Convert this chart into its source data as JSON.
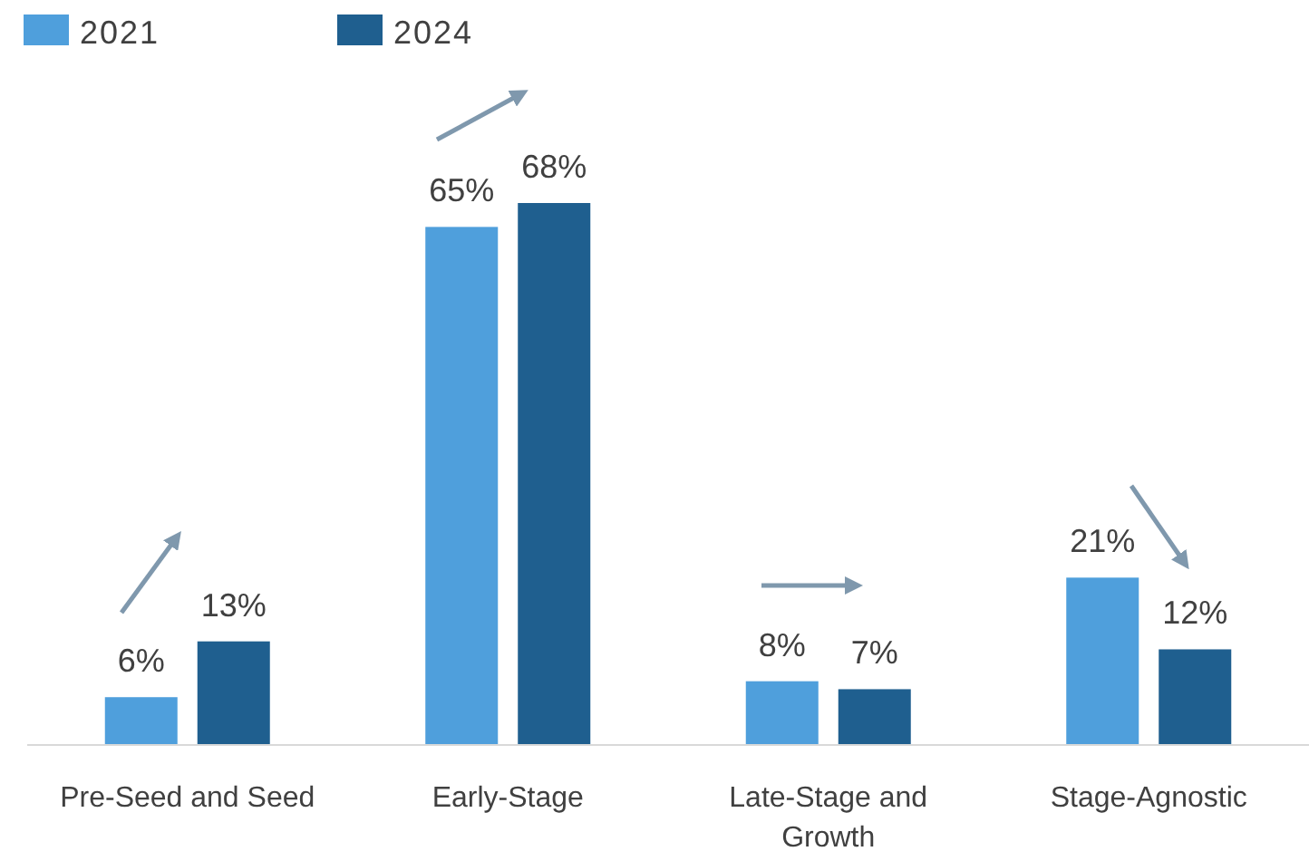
{
  "chart_data": {
    "type": "bar",
    "categories": [
      "Pre-Seed and Seed",
      "Early-Stage",
      "Late-Stage and Growth",
      "Stage-Agnostic"
    ],
    "series": [
      {
        "name": "2021",
        "color": "#4f9fdc",
        "values": [
          6,
          65,
          8,
          21
        ],
        "value_labels": [
          "6%",
          "65%",
          "8%",
          "21%"
        ]
      },
      {
        "name": "2024",
        "color": "#1f5f8f",
        "values": [
          13,
          68,
          7,
          12
        ],
        "value_labels": [
          "13%",
          "68%",
          "7%",
          "12%"
        ]
      }
    ],
    "legend": "top left"
  }
}
